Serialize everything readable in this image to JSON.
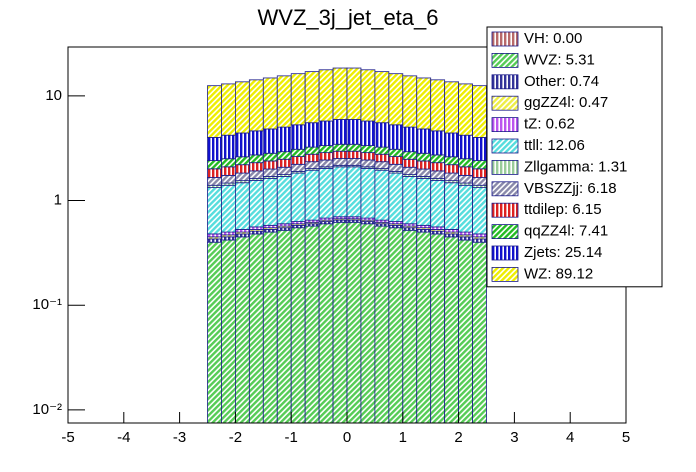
{
  "chart_data": {
    "type": "stacked_histogram",
    "title": "WVZ_3j_jet_eta_6",
    "bins": [
      -2.5,
      -2.25,
      -2,
      -1.75,
      -1.5,
      -1.25,
      -1,
      -0.75,
      -0.5,
      -0.25,
      0,
      0.25,
      0.5,
      0.75,
      1,
      1.25,
      1.5,
      1.75,
      2,
      2.25,
      2.5
    ],
    "xlim": [
      -5,
      5
    ],
    "xticks": [
      -5,
      -4,
      -3,
      -2,
      -1,
      0,
      1,
      2,
      3,
      4,
      5
    ],
    "ylim": [
      0.0075,
      29.3
    ],
    "log_y": true,
    "yticks": [
      {
        "value": 0.01,
        "label": "10⁻²"
      },
      {
        "value": 0.1,
        "label": "10⁻¹"
      },
      1,
      10
    ],
    "series": [
      {
        "name": "VH: 0.00",
        "color": "#b86a6a",
        "values": [
          0,
          0,
          0,
          0,
          0,
          0,
          0,
          0,
          0,
          0,
          0,
          0,
          0,
          0,
          0,
          0,
          0,
          0,
          0,
          0
        ]
      },
      {
        "name": "WVZ: 5.31",
        "color": "#55cc55",
        "values": [
          0.4,
          0.42,
          0.45,
          0.48,
          0.5,
          0.52,
          0.55,
          0.57,
          0.6,
          0.62,
          0.62,
          0.6,
          0.57,
          0.55,
          0.52,
          0.5,
          0.48,
          0.45,
          0.42,
          0.4
        ]
      },
      {
        "name": "Other: 0.74",
        "color": "#333399",
        "values": [
          0.03,
          0.03,
          0.03,
          0.03,
          0.03,
          0.03,
          0.03,
          0.03,
          0.03,
          0.03,
          0.03,
          0.03,
          0.03,
          0.03,
          0.03,
          0.03,
          0.03,
          0.03,
          0.03,
          0.03
        ]
      },
      {
        "name": "ggZZ4l: 0.47",
        "color": "#eeee44",
        "values": [
          0.02,
          0.02,
          0.02,
          0.02,
          0.02,
          0.02,
          0.02,
          0.02,
          0.02,
          0.02,
          0.02,
          0.02,
          0.02,
          0.02,
          0.02,
          0.02,
          0.02,
          0.02,
          0.02,
          0.02
        ]
      },
      {
        "name": "tZ: 0.62",
        "color": "#bb55ee",
        "values": [
          0.03,
          0.03,
          0.03,
          0.03,
          0.03,
          0.03,
          0.03,
          0.03,
          0.03,
          0.03,
          0.03,
          0.03,
          0.03,
          0.03,
          0.03,
          0.03,
          0.03,
          0.03,
          0.03,
          0.03
        ]
      },
      {
        "name": "ttll: 12.06",
        "color": "#55dddd",
        "values": [
          0.85,
          0.9,
          0.95,
          1.0,
          1.05,
          1.1,
          1.2,
          1.3,
          1.35,
          1.4,
          1.4,
          1.35,
          1.3,
          1.2,
          1.1,
          1.05,
          1.0,
          0.95,
          0.9,
          0.85
        ]
      },
      {
        "name": "Zllgamma: 1.31",
        "color": "#99cc99",
        "values": [
          0.07,
          0.07,
          0.07,
          0.07,
          0.07,
          0.07,
          0.07,
          0.07,
          0.07,
          0.07,
          0.07,
          0.07,
          0.07,
          0.07,
          0.07,
          0.07,
          0.07,
          0.07,
          0.07,
          0.07
        ]
      },
      {
        "name": "VBSZZjj: 6.18",
        "color": "#8888aa",
        "values": [
          0.26,
          0.27,
          0.28,
          0.29,
          0.3,
          0.31,
          0.32,
          0.33,
          0.34,
          0.35,
          0.35,
          0.34,
          0.33,
          0.32,
          0.31,
          0.3,
          0.29,
          0.28,
          0.27,
          0.26
        ]
      },
      {
        "name": "ttdilep: 6.15",
        "color": "#dd2222",
        "values": [
          0.35,
          0.36,
          0.37,
          0.38,
          0.39,
          0.4,
          0.41,
          0.42,
          0.43,
          0.44,
          0.44,
          0.43,
          0.42,
          0.41,
          0.4,
          0.39,
          0.38,
          0.37,
          0.36,
          0.35
        ]
      },
      {
        "name": "qqZZ4l: 7.41",
        "color": "#22bb22",
        "values": [
          0.4,
          0.41,
          0.42,
          0.43,
          0.44,
          0.45,
          0.46,
          0.47,
          0.48,
          0.49,
          0.49,
          0.48,
          0.47,
          0.46,
          0.45,
          0.44,
          0.43,
          0.42,
          0.41,
          0.4
        ]
      },
      {
        "name": "Zjets: 25.14",
        "color": "#1111cc",
        "values": [
          1.6,
          1.7,
          1.8,
          1.9,
          2.0,
          2.1,
          2.2,
          2.3,
          2.4,
          2.5,
          2.5,
          2.4,
          2.3,
          2.2,
          2.1,
          2.0,
          1.9,
          1.8,
          1.7,
          1.6
        ]
      },
      {
        "name": "WZ: 89.12",
        "color": "#eeee00",
        "values": [
          8.5,
          8.8,
          9.2,
          9.6,
          10,
          10.5,
          11,
          11.5,
          12,
          12.5,
          12.5,
          12,
          11.5,
          11,
          10.5,
          10,
          9.6,
          9.2,
          8.8,
          8.5
        ]
      }
    ]
  }
}
